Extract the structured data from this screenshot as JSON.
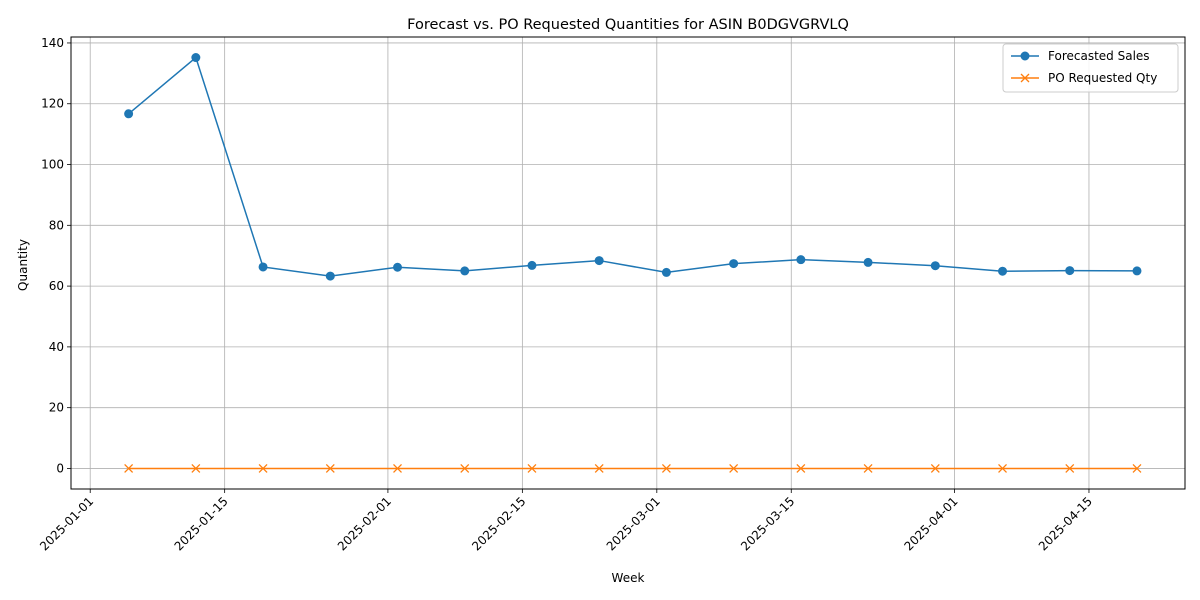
{
  "chart_data": {
    "type": "line",
    "title": "Forecast vs. PO Requested Quantities for ASIN B0DGVGRVLQ",
    "xlabel": "Week",
    "ylabel": "Quantity",
    "x": [
      "2025-01-05",
      "2025-01-12",
      "2025-01-19",
      "2025-01-26",
      "2025-02-02",
      "2025-02-09",
      "2025-02-16",
      "2025-02-23",
      "2025-03-02",
      "2025-03-09",
      "2025-03-16",
      "2025-03-23",
      "2025-03-30",
      "2025-04-06",
      "2025-04-13",
      "2025-04-20"
    ],
    "series": [
      {
        "name": "Forecasted Sales",
        "color": "#1f77b4",
        "marker": "circle",
        "values": [
          116.7,
          135.2,
          66.3,
          63.3,
          66.2,
          65.0,
          66.8,
          68.4,
          64.5,
          67.4,
          68.7,
          67.8,
          66.7,
          64.9,
          65.1,
          65.0
        ]
      },
      {
        "name": "PO Requested Qty",
        "color": "#ff7f0e",
        "marker": "x",
        "values": [
          0,
          0,
          0,
          0,
          0,
          0,
          0,
          0,
          0,
          0,
          0,
          0,
          0,
          0,
          0,
          0
        ]
      }
    ],
    "xlim": [
      "2024-12-30",
      "2025-04-25"
    ],
    "ylim": [
      -6.76,
      141.96
    ],
    "x_ticks": [
      "2025-01-01",
      "2025-01-15",
      "2025-02-01",
      "2025-02-15",
      "2025-03-01",
      "2025-03-15",
      "2025-04-01",
      "2025-04-15"
    ],
    "y_ticks": [
      0,
      20,
      40,
      60,
      80,
      100,
      120,
      140
    ],
    "grid": true,
    "legend_position": "top-right"
  }
}
